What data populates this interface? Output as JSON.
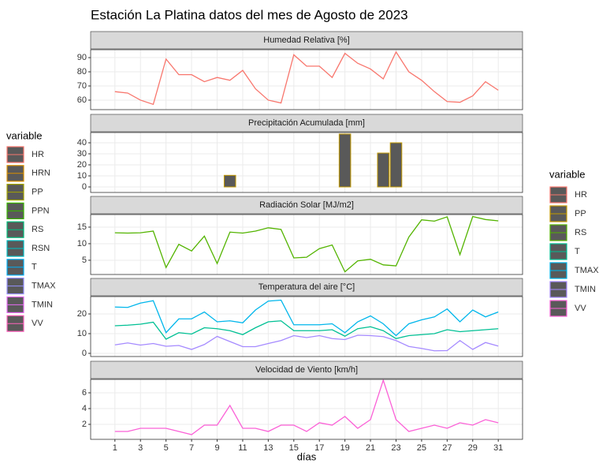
{
  "title": "Estación La Platina datos del mes de Agosto de 2023",
  "x_label": "días",
  "chart_data": [
    {
      "type": "line",
      "title": "Humedad Relativa [%]",
      "x": [
        1,
        2,
        3,
        4,
        5,
        6,
        7,
        8,
        9,
        10,
        11,
        12,
        13,
        14,
        15,
        16,
        17,
        18,
        19,
        20,
        21,
        22,
        23,
        24,
        25,
        26,
        27,
        28,
        29,
        30,
        31
      ],
      "xlim": [
        -0.9,
        32.9
      ],
      "xticks": [
        1,
        3,
        5,
        7,
        9,
        11,
        13,
        15,
        17,
        19,
        21,
        23,
        25,
        27,
        29,
        31
      ],
      "ylim": [
        53.3,
        95.6
      ],
      "yticks": [
        60,
        70,
        80,
        90
      ],
      "series": [
        {
          "name": "HR",
          "color": "#F8766D",
          "values": [
            66,
            65,
            60,
            57,
            89,
            78,
            78,
            73,
            76,
            74,
            81,
            68,
            60,
            58,
            92,
            84,
            84,
            76,
            93,
            86,
            82,
            75,
            94,
            80,
            74,
            66,
            59,
            58.5,
            63,
            73,
            67
          ]
        }
      ]
    },
    {
      "type": "bar",
      "title": "Precipitación Acumulada [mm]",
      "x": [
        1,
        2,
        3,
        4,
        5,
        6,
        7,
        8,
        9,
        10,
        11,
        12,
        13,
        14,
        15,
        16,
        17,
        18,
        19,
        20,
        21,
        22,
        23,
        24,
        25,
        26,
        27,
        28,
        29,
        30,
        31
      ],
      "xlim": [
        -0.9,
        32.9
      ],
      "xticks": [
        1,
        3,
        5,
        7,
        9,
        11,
        13,
        15,
        17,
        19,
        21,
        23,
        25,
        27,
        29,
        31
      ],
      "ylim": [
        -5,
        49.3
      ],
      "yticks": [
        0,
        10,
        20,
        30,
        40
      ],
      "series": [
        {
          "name": "PP",
          "color": "#C49A00",
          "fill": "#595959",
          "values": [
            0,
            0,
            0,
            0,
            0,
            0,
            0,
            0,
            0,
            10.5,
            0,
            0,
            0,
            0,
            0,
            0,
            0,
            0,
            47.9,
            0,
            0,
            30.7,
            40,
            0,
            0,
            0,
            0,
            0,
            0,
            0,
            0
          ]
        }
      ]
    },
    {
      "type": "line",
      "title": "Radiación Solar [MJ/m2]",
      "x": [
        1,
        2,
        3,
        4,
        5,
        6,
        7,
        8,
        9,
        10,
        11,
        12,
        13,
        14,
        15,
        16,
        17,
        18,
        19,
        20,
        21,
        22,
        23,
        24,
        25,
        26,
        27,
        28,
        29,
        30,
        31
      ],
      "xlim": [
        -0.9,
        32.9
      ],
      "xticks": [
        1,
        3,
        5,
        7,
        9,
        11,
        13,
        15,
        17,
        19,
        21,
        23,
        25,
        27,
        29,
        31
      ],
      "ylim": [
        0.7,
        18.8
      ],
      "yticks": [
        5,
        10,
        15
      ],
      "series": [
        {
          "name": "RS",
          "color": "#53B400",
          "values": [
            13.3,
            13.2,
            13.3,
            13.8,
            2.8,
            9.8,
            7.8,
            12.3,
            4,
            13.5,
            13.2,
            13.8,
            14.8,
            14.3,
            5.7,
            5.9,
            8.5,
            9.6,
            1.5,
            4.8,
            5.3,
            3.6,
            3.3,
            12,
            17.2,
            16.8,
            18.1,
            6.7,
            18.2,
            17.3,
            16.9
          ]
        }
      ]
    },
    {
      "type": "line",
      "title": "Temperatura del aire [°C]",
      "x": [
        1,
        2,
        3,
        4,
        5,
        6,
        7,
        8,
        9,
        10,
        11,
        12,
        13,
        14,
        15,
        16,
        17,
        18,
        19,
        20,
        21,
        22,
        23,
        24,
        25,
        26,
        27,
        28,
        29,
        30,
        31
      ],
      "xlim": [
        -0.9,
        32.9
      ],
      "xticks": [
        1,
        3,
        5,
        7,
        9,
        11,
        13,
        15,
        17,
        19,
        21,
        23,
        25,
        27,
        29,
        31
      ],
      "ylim": [
        -1.6,
        28.8
      ],
      "yticks": [
        0,
        10,
        20
      ],
      "series": [
        {
          "name": "T",
          "color": "#00C094",
          "values": [
            14,
            14.3,
            14.8,
            15.8,
            7.2,
            10.5,
            9.8,
            13,
            12.5,
            11.5,
            9.5,
            13,
            16,
            16.5,
            11.5,
            11.5,
            11.5,
            12,
            8.7,
            12.5,
            13.5,
            11.5,
            7.5,
            9,
            9.5,
            10,
            12,
            11,
            11.5,
            12,
            12.5
          ]
        },
        {
          "name": "TMAX",
          "color": "#00B6EB",
          "values": [
            23.5,
            23.3,
            25.5,
            26.7,
            10.5,
            17.5,
            17.5,
            21,
            16,
            16.5,
            15.5,
            22,
            26.5,
            27,
            14.5,
            14.5,
            14.5,
            15,
            10.5,
            16,
            19,
            15,
            9,
            15,
            17,
            18.5,
            22.5,
            16,
            22,
            18.5,
            21
          ]
        },
        {
          "name": "TMIN",
          "color": "#A58AFF",
          "values": [
            4.3,
            5.3,
            4.2,
            5,
            3.6,
            4,
            2,
            4.5,
            8.6,
            6,
            3.4,
            3.4,
            5,
            6.5,
            9,
            8,
            9,
            7.5,
            7,
            9.2,
            9,
            8.5,
            6.5,
            3.5,
            2.5,
            1.3,
            1.4,
            6.5,
            2,
            5.5,
            3.7
          ]
        }
      ]
    },
    {
      "type": "line",
      "title": "Velocidad de Viento [km/h]",
      "x": [
        1,
        2,
        3,
        4,
        5,
        6,
        7,
        8,
        9,
        10,
        11,
        12,
        13,
        14,
        15,
        16,
        17,
        18,
        19,
        20,
        21,
        22,
        23,
        24,
        25,
        26,
        27,
        28,
        29,
        30,
        31
      ],
      "xlim": [
        -0.9,
        32.9
      ],
      "xticks": [
        1,
        3,
        5,
        7,
        9,
        11,
        13,
        15,
        17,
        19,
        21,
        23,
        25,
        27,
        29,
        31
      ],
      "ylim": [
        0.1,
        7.7
      ],
      "yticks": [
        2,
        4,
        6
      ],
      "series": [
        {
          "name": "VV",
          "color": "#FB61D7",
          "values": [
            1.1,
            1.1,
            1.5,
            1.5,
            1.5,
            1.1,
            0.7,
            1.9,
            1.9,
            4.4,
            1.5,
            1.5,
            1.1,
            1.9,
            1.9,
            1.1,
            2.2,
            1.9,
            3,
            1.5,
            2.6,
            7.6,
            2.6,
            1.1,
            1.5,
            1.9,
            1.5,
            2.2,
            1.9,
            2.6,
            2.2
          ]
        }
      ]
    }
  ],
  "legends": [
    {
      "title": "variable",
      "items": [
        {
          "name": "HR",
          "color": "#F8766D"
        },
        {
          "name": "HRN",
          "color": "#D89000"
        },
        {
          "name": "PP",
          "color": "#A3A500"
        },
        {
          "name": "PPN",
          "color": "#39B600"
        },
        {
          "name": "RS",
          "color": "#00BF7D"
        },
        {
          "name": "RSN",
          "color": "#00BFC4"
        },
        {
          "name": "T",
          "color": "#00B0F6"
        },
        {
          "name": "TMAX",
          "color": "#9590FF"
        },
        {
          "name": "TMIN",
          "color": "#E76BF3"
        },
        {
          "name": "VV",
          "color": "#FF62BC"
        }
      ]
    },
    {
      "title": "variable",
      "items": [
        {
          "name": "HR",
          "color": "#F8766D"
        },
        {
          "name": "PP",
          "color": "#C49A00"
        },
        {
          "name": "RS",
          "color": "#53B400"
        },
        {
          "name": "T",
          "color": "#00C094"
        },
        {
          "name": "TMAX",
          "color": "#00B6EB"
        },
        {
          "name": "TMIN",
          "color": "#A58AFF"
        },
        {
          "name": "VV",
          "color": "#FB61D7"
        }
      ]
    }
  ]
}
